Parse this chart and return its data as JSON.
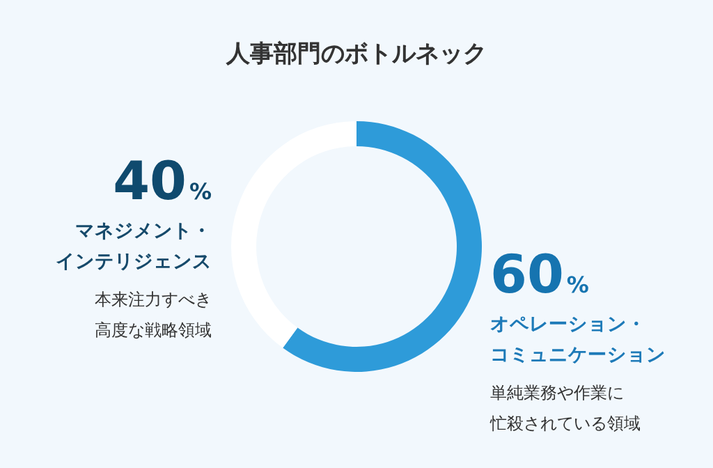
{
  "chart_data": {
    "type": "donut",
    "title": "人事部門のボトルネック",
    "categories": [
      "オペレーション・コミュニケーション",
      "マネジメント・インテリジェンス"
    ],
    "values": [
      60,
      40
    ],
    "colors": [
      "#2e9bd9",
      "#ffffff"
    ],
    "value_labels": [
      "60%",
      "40%"
    ],
    "annotations": [
      "単純業務や作業に",
      "忙殺されている領域",
      "本来注力すべき",
      "高度な戦略領域"
    ]
  }
}
